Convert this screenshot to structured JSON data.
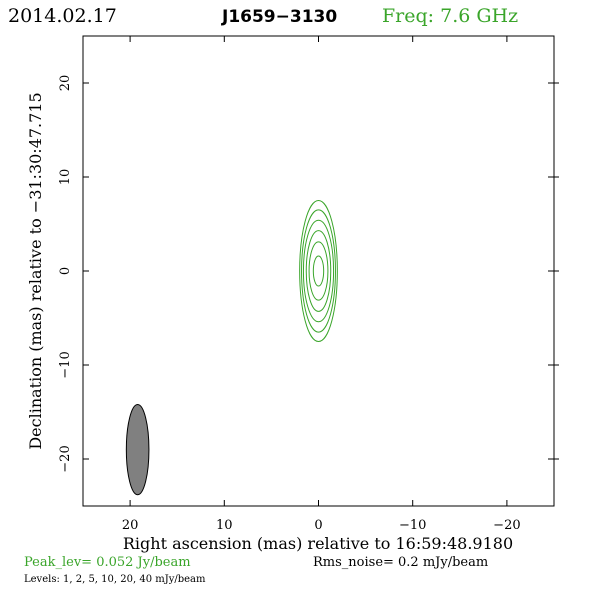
{
  "header": {
    "date": "2014.02.17",
    "source": "J1659−3130",
    "freq": "Freq: 7.6 GHz"
  },
  "footer": {
    "peak": "Peak_lev=  0.052 Jy/beam",
    "rms": "Rms_noise=  0.2 mJy/beam",
    "levels": "Levels:   1,   2,   5,  10,  20,  40 mJy/beam"
  },
  "colors": {
    "accent": "#3aa52a",
    "beam_fill": "#808080",
    "frame": "#000000"
  },
  "chart_data": {
    "type": "contour",
    "xlabel": "Right ascension (mas) relative to 16:59:48.9180",
    "ylabel": "Declination (mas) relative to −31:30:47.715",
    "xlim": [
      25,
      -25
    ],
    "ylim": [
      -25,
      25
    ],
    "xticks": [
      20,
      10,
      0,
      -10,
      -20
    ],
    "xtick_labels": [
      "20",
      "10",
      "0",
      "−10",
      "−20"
    ],
    "yticks": [
      -20,
      -10,
      0,
      10,
      20
    ],
    "ytick_labels": [
      "−20",
      "−10",
      "0",
      "10",
      "20"
    ],
    "contour_center": [
      0.0,
      0.0
    ],
    "contours": [
      {
        "level_mJy": 1,
        "a": 2.0,
        "b": 7.5
      },
      {
        "level_mJy": 2,
        "a": 1.8,
        "b": 6.5
      },
      {
        "level_mJy": 5,
        "a": 1.6,
        "b": 5.4
      },
      {
        "level_mJy": 10,
        "a": 1.3,
        "b": 4.3
      },
      {
        "level_mJy": 20,
        "a": 1.0,
        "b": 3.1
      },
      {
        "level_mJy": 40,
        "a": 0.55,
        "b": 1.6
      }
    ],
    "beam": {
      "center": [
        19.2,
        -19.0
      ],
      "a": 1.2,
      "b": 4.8
    }
  }
}
